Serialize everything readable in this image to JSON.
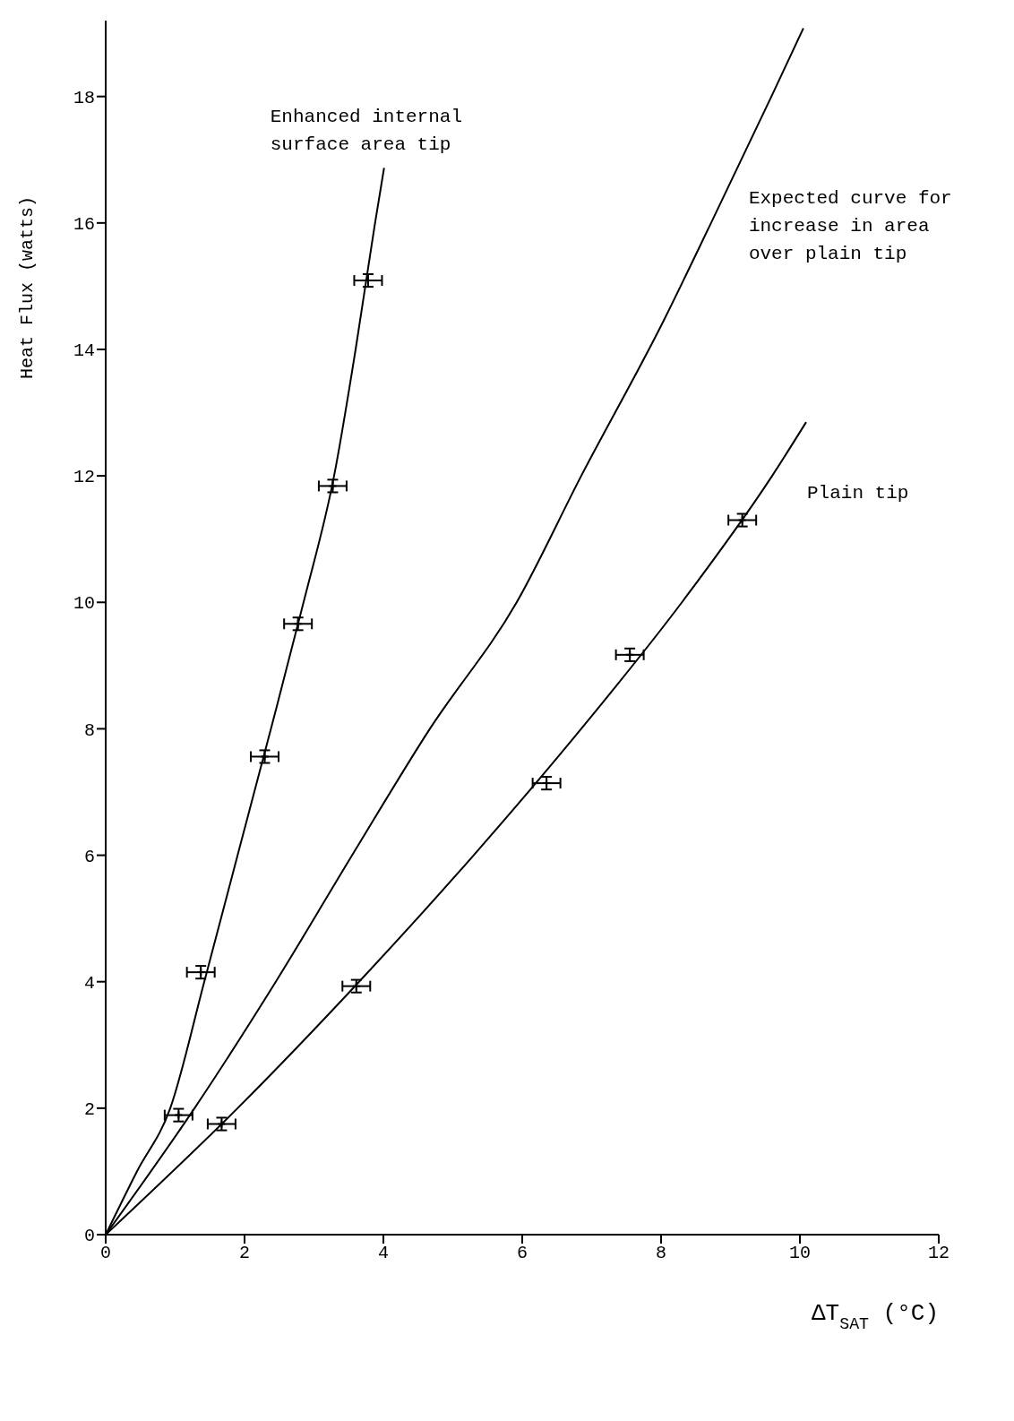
{
  "chart_data": {
    "type": "line",
    "xlabel": "ΔT$_{SAT}$ (°C)",
    "ylabel": "Heat Flux (watts)",
    "xlim": [
      0,
      12
    ],
    "xticks": [
      0,
      2,
      4,
      6,
      8,
      10,
      12
    ],
    "ylim": [
      0,
      19.2
    ],
    "yticks": [
      0,
      2,
      4,
      6,
      8,
      10,
      12,
      14,
      16,
      18
    ],
    "grid": false,
    "legend": false,
    "line_style": "solid",
    "series": [
      {
        "name": "Enhanced internal surface area tip",
        "color": "#000000",
        "marker": "none",
        "x": [
          0,
          0.45,
          0.93,
          1.42,
          1.9,
          2.38,
          2.85,
          3.29,
          3.6,
          3.88,
          4.01
        ],
        "values": [
          0,
          1,
          2,
          4,
          6,
          8,
          10,
          12,
          14,
          16,
          16.87
        ]
      },
      {
        "name": "Expected curve for increase in area over plain tip",
        "color": "#000000",
        "marker": "none",
        "x": [
          0,
          1.28,
          2.45,
          3.55,
          4.67,
          5.92,
          6.85,
          8.03,
          8.72,
          9.59,
          10.05
        ],
        "values": [
          0,
          2,
          4,
          6,
          8,
          10,
          12,
          14.44,
          16,
          18,
          19.08
        ]
      },
      {
        "name": "Plain tip",
        "color": "#000000",
        "marker": "none",
        "x": [
          0,
          1.9,
          3.65,
          5.3,
          6.85,
          8.3,
          9.6,
          10.09
        ],
        "values": [
          0,
          2,
          4,
          6,
          8,
          10,
          12,
          12.85
        ]
      },
      {
        "type": "scatter",
        "color": "#000000",
        "marker": "cross",
        "x": [
          1.05,
          1.37,
          2.29,
          2.77,
          3.27,
          3.78
        ],
        "values": [
          1.89,
          4.15,
          7.56,
          9.66,
          11.84,
          15.09
        ],
        "errors": [
          0.1,
          0.1,
          0.1,
          0.1,
          0.1,
          0.1
        ],
        "xerrors": [
          0.2,
          0.2,
          0.2,
          0.2,
          0.2,
          0.2
        ]
      },
      {
        "type": "scatter",
        "color": "#000000",
        "marker": "cross",
        "x": [
          1.67,
          3.61,
          6.35,
          7.55,
          9.17
        ],
        "values": [
          1.75,
          3.93,
          7.14,
          9.17,
          11.3
        ],
        "errors": [
          0.1,
          0.1,
          0.1,
          0.1,
          0.1
        ],
        "xerrors": [
          0.2,
          0.2,
          0.2,
          0.2,
          0.2
        ]
      }
    ]
  }
}
